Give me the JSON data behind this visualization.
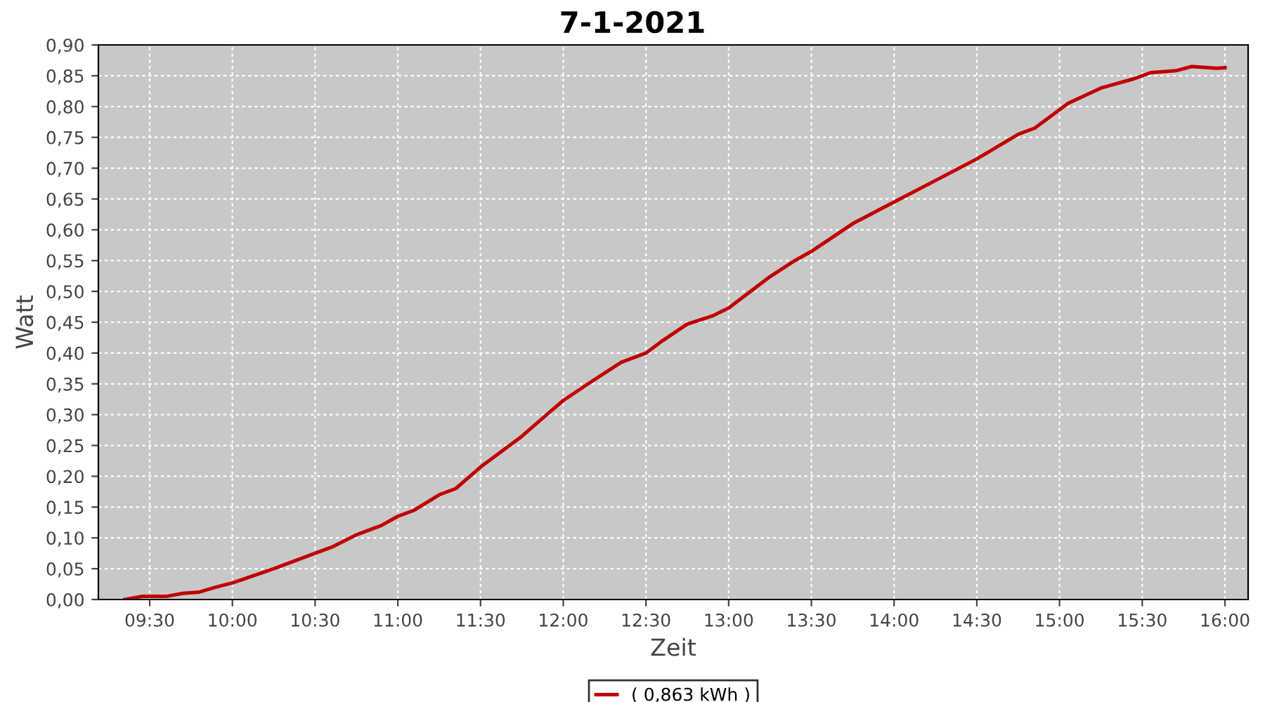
{
  "chart_data": {
    "type": "line",
    "title": "7-1-2021",
    "xlabel": "Zeit",
    "ylabel": "Watt",
    "x": [
      9.35,
      9.45,
      9.6,
      9.7,
      9.8,
      9.9,
      10.0,
      10.25,
      10.5,
      10.6,
      10.75,
      10.9,
      11.0,
      11.1,
      11.25,
      11.35,
      11.5,
      11.65,
      11.75,
      11.9,
      12.0,
      12.15,
      12.35,
      12.5,
      12.6,
      12.75,
      12.9,
      13.0,
      13.25,
      13.4,
      13.5,
      13.75,
      14.0,
      14.25,
      14.5,
      14.75,
      14.85,
      14.95,
      15.05,
      15.25,
      15.45,
      15.55,
      15.7,
      15.8,
      15.95,
      16.0
    ],
    "series": [
      {
        "name": "( 0,863 kWh )",
        "color": "#c00000",
        "values": [
          0.0,
          0.005,
          0.005,
          0.01,
          0.012,
          0.02,
          0.027,
          0.05,
          0.075,
          0.085,
          0.105,
          0.12,
          0.135,
          0.145,
          0.17,
          0.18,
          0.215,
          0.245,
          0.265,
          0.3,
          0.323,
          0.35,
          0.385,
          0.4,
          0.42,
          0.447,
          0.46,
          0.473,
          0.524,
          0.55,
          0.565,
          0.61,
          0.645,
          0.68,
          0.715,
          0.755,
          0.765,
          0.785,
          0.805,
          0.83,
          0.845,
          0.855,
          0.858,
          0.865,
          0.862,
          0.863
        ]
      }
    ],
    "xlim": [
      9.19,
      16.14
    ],
    "xticks": [
      {
        "value": 9.5,
        "label": "09:30"
      },
      {
        "value": 10,
        "label": "10:00"
      },
      {
        "value": 10.5,
        "label": "10:30"
      },
      {
        "value": 11,
        "label": "11:00"
      },
      {
        "value": 11.5,
        "label": "11:30"
      },
      {
        "value": 12,
        "label": "12:00"
      },
      {
        "value": 12.5,
        "label": "12:30"
      },
      {
        "value": 13,
        "label": "13:00"
      },
      {
        "value": 13.5,
        "label": "13:30"
      },
      {
        "value": 14,
        "label": "14:00"
      },
      {
        "value": 14.5,
        "label": "14:30"
      },
      {
        "value": 15,
        "label": "15:00"
      },
      {
        "value": 15.5,
        "label": "15:30"
      },
      {
        "value": 16,
        "label": "16:00"
      }
    ],
    "ylim": [
      0,
      0.9
    ],
    "yticks": [
      {
        "value": 0,
        "label": "0,00"
      },
      {
        "value": 0.05,
        "label": "0,05"
      },
      {
        "value": 0.1,
        "label": "0,10"
      },
      {
        "value": 0.15,
        "label": "0,15"
      },
      {
        "value": 0.2,
        "label": "0,20"
      },
      {
        "value": 0.25,
        "label": "0,25"
      },
      {
        "value": 0.3,
        "label": "0,30"
      },
      {
        "value": 0.35,
        "label": "0,35"
      },
      {
        "value": 0.4,
        "label": "0,40"
      },
      {
        "value": 0.45,
        "label": "0,45"
      },
      {
        "value": 0.5,
        "label": "0,50"
      },
      {
        "value": 0.55,
        "label": "0,55"
      },
      {
        "value": 0.6,
        "label": "0,60"
      },
      {
        "value": 0.65,
        "label": "0,65"
      },
      {
        "value": 0.7,
        "label": "0,70"
      },
      {
        "value": 0.75,
        "label": "0,75"
      },
      {
        "value": 0.8,
        "label": "0,80"
      },
      {
        "value": 0.85,
        "label": "0,85"
      },
      {
        "value": 0.9,
        "label": "0,90"
      }
    ],
    "grid": true,
    "legend": "bottom",
    "marker": "none",
    "line_style": "solid"
  }
}
